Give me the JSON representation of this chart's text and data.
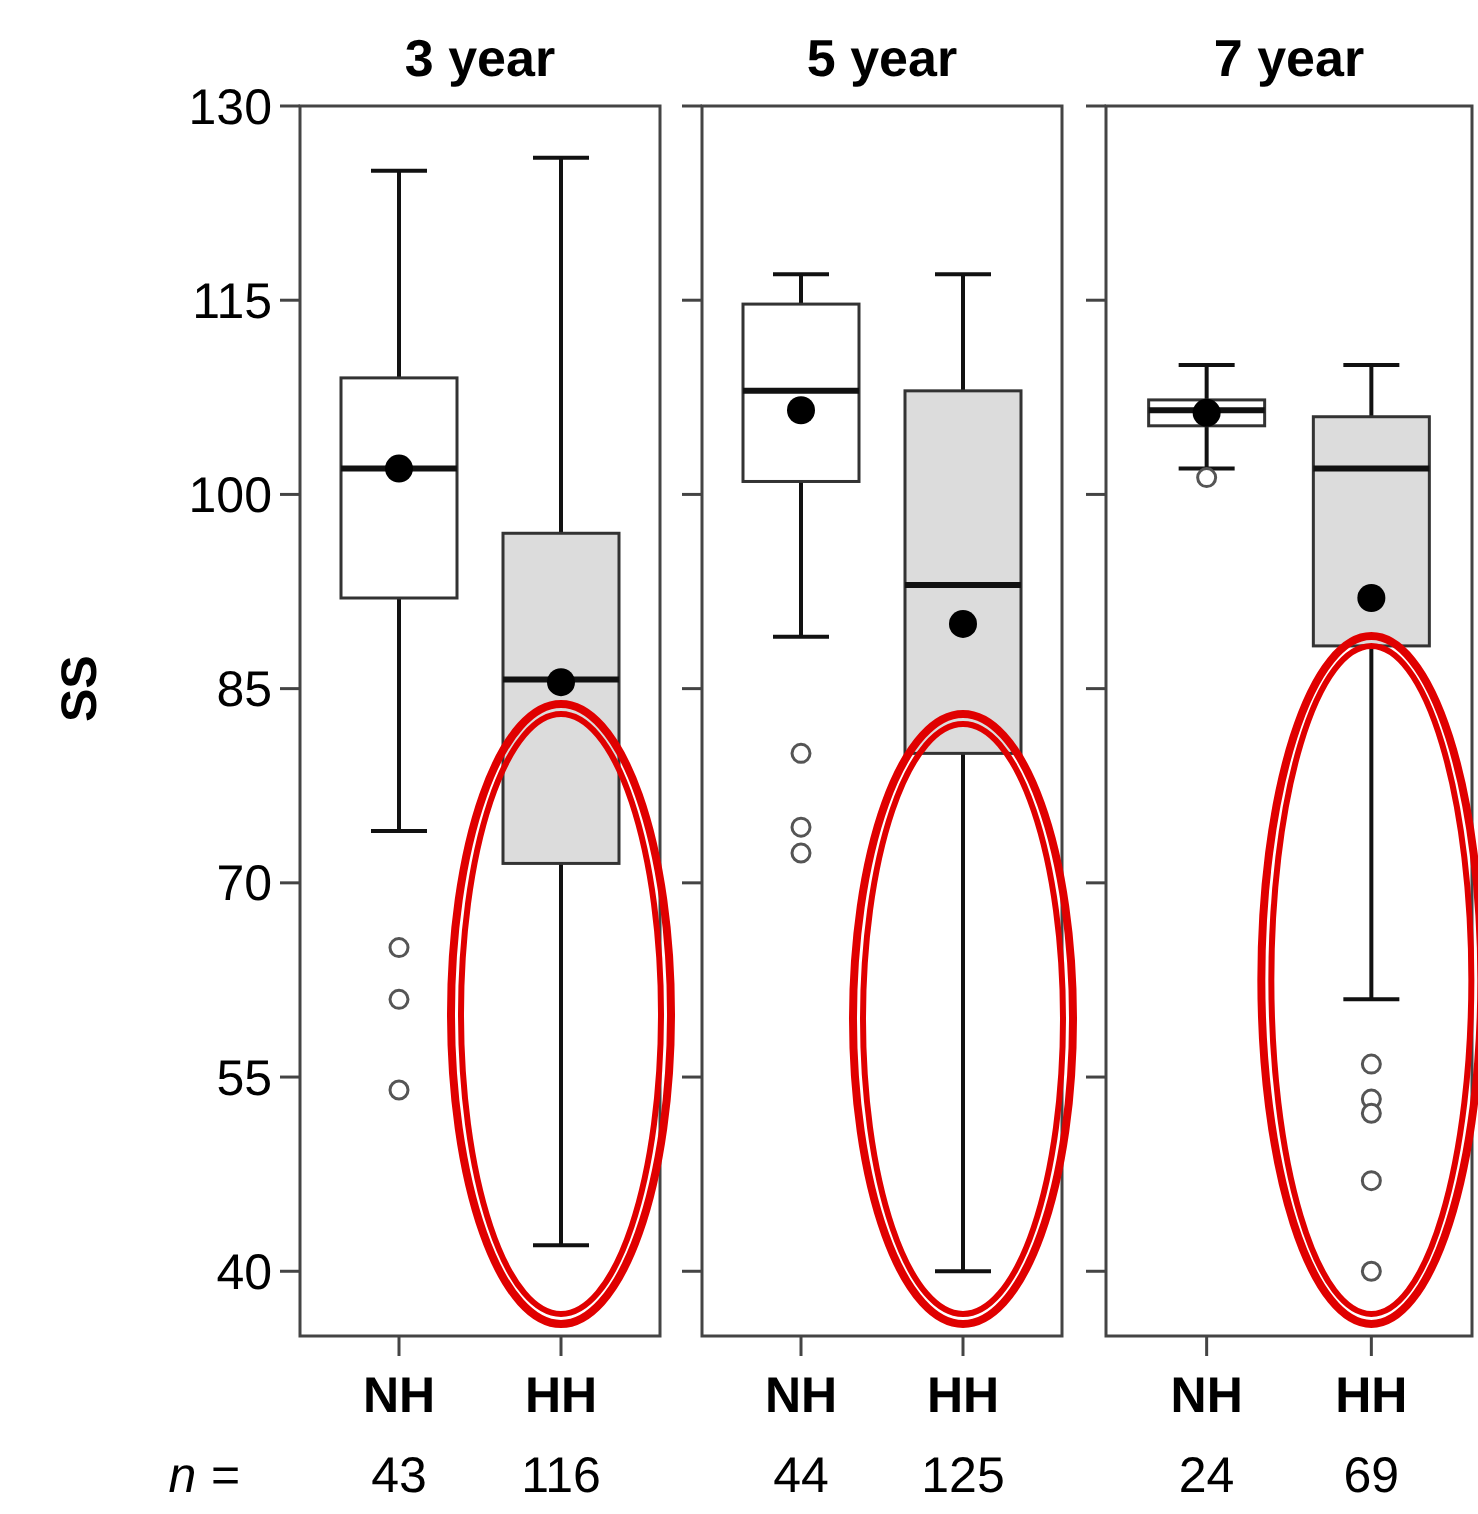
{
  "chart_data": [
    {
      "type": "box",
      "title": "3 year",
      "ylabel": "SS",
      "categories": [
        "NH",
        "HH"
      ],
      "colors": [
        "#ffffff",
        "#dcdcdc"
      ],
      "ylim": [
        35,
        130
      ],
      "yticks": [
        40,
        55,
        70,
        85,
        100,
        115,
        130
      ],
      "grid": false,
      "boxes": [
        {
          "low": 74,
          "q1": 92,
          "median": 102,
          "q3": 109,
          "high": 125,
          "mean": 102,
          "outliers": [
            65,
            61,
            54
          ]
        },
        {
          "low": 42,
          "q1": 71.5,
          "median": 85.7,
          "q3": 97,
          "high": 126,
          "mean": 85.5
        }
      ],
      "annotations": [
        "n =",
        "43",
        "116"
      ]
    },
    {
      "type": "box",
      "title": "5 year",
      "categories": [
        "NH",
        "HH"
      ],
      "colors": [
        "#ffffff",
        "#dcdcdc"
      ],
      "ylim": [
        35,
        130
      ],
      "yticks": [
        40,
        55,
        70,
        85,
        100,
        115,
        130
      ],
      "tick_labels": "x",
      "grid": false,
      "boxes": [
        {
          "low": 89,
          "q1": 101,
          "median": 108,
          "q3": 114.7,
          "high": 117,
          "mean": 106.5,
          "outliers": [
            80,
            74.3,
            72.3
          ]
        },
        {
          "low": 40,
          "q1": 80,
          "median": 93,
          "q3": 108,
          "high": 117,
          "mean": 90
        }
      ],
      "annotations": [
        "44",
        "125"
      ]
    },
    {
      "type": "box",
      "title": "7 year",
      "categories": [
        "NH",
        "HH"
      ],
      "colors": [
        "#ffffff",
        "#dcdcdc"
      ],
      "ylim": [
        35,
        130
      ],
      "yticks": [
        40,
        55,
        70,
        85,
        100,
        115,
        130
      ],
      "tick_labels": "x",
      "grid": false,
      "boxes": [
        {
          "low": 102,
          "q1": 105.3,
          "median": 106.5,
          "q3": 107.3,
          "high": 110,
          "mean": 106.3,
          "outliers": [
            101.3
          ]
        },
        {
          "low": 61,
          "q1": 88.3,
          "median": 102,
          "q3": 106,
          "high": 110,
          "mean": 92,
          "outliers": [
            56,
            53.3,
            52.2,
            47,
            40
          ]
        }
      ],
      "annotations": [
        "24",
        "69"
      ]
    }
  ]
}
